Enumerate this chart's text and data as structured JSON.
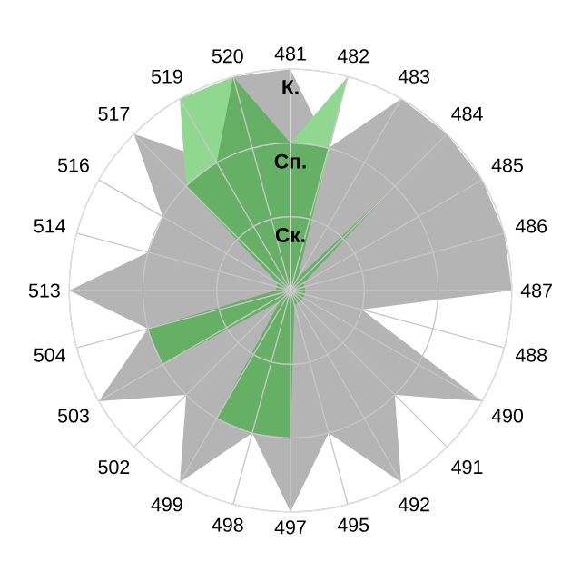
{
  "chart_data": {
    "type": "radar",
    "categories": [
      "481",
      "482",
      "483",
      "484",
      "485",
      "486",
      "487",
      "488",
      "490",
      "491",
      "492",
      "495",
      "497",
      "498",
      "499",
      "502",
      "503",
      "504",
      "513",
      "514",
      "516",
      "517",
      "519",
      "520"
    ],
    "ylim": [
      0,
      3
    ],
    "yticks": [
      {
        "value": 1,
        "label": "Ск."
      },
      {
        "value": 2,
        "label": "Сп."
      },
      {
        "value": 3,
        "label": "К."
      }
    ],
    "grid": true,
    "series": [
      {
        "color": "#b4b4b4",
        "values": [
          3,
          2,
          3,
          3,
          3,
          3,
          3,
          1,
          3,
          2,
          3,
          2,
          3,
          2,
          3,
          2,
          3,
          2,
          3,
          2,
          2,
          3,
          2,
          3
        ]
      },
      {
        "color": "#90d890",
        "values": [
          2,
          3,
          0.2,
          null,
          null,
          null,
          null,
          null,
          null,
          null,
          null,
          null,
          null,
          null,
          null,
          null,
          null,
          null,
          null,
          null,
          null,
          2,
          3,
          3
        ]
      },
      {
        "color": "#66b066",
        "values": [
          2,
          2,
          0.2,
          2,
          0.2,
          0.2,
          0.2,
          0.2,
          0.2,
          0.2,
          0.2,
          0.2,
          2,
          2,
          2,
          0.2,
          2,
          2,
          0.2,
          0.2,
          0.2,
          2,
          2,
          3
        ]
      }
    ]
  }
}
